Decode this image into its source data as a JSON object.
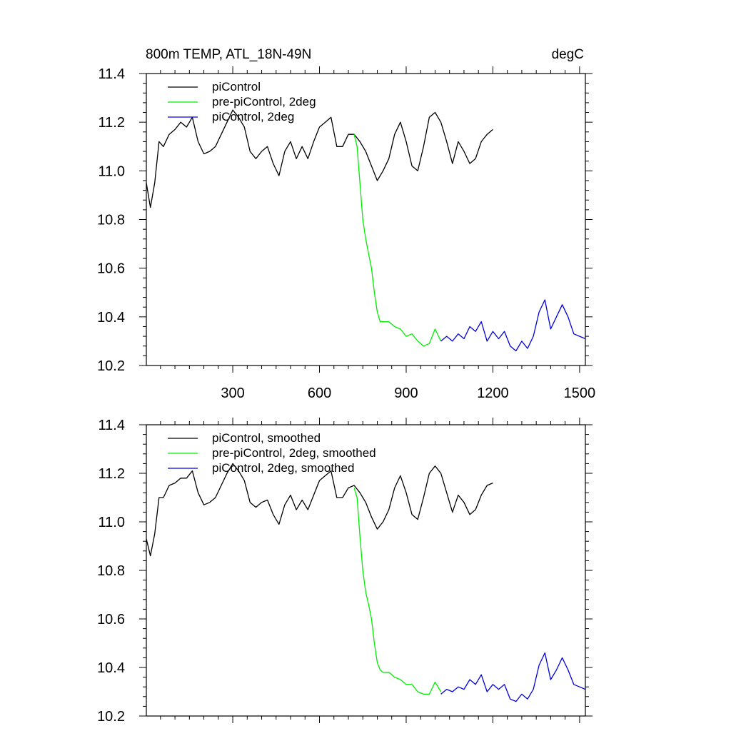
{
  "chart_data": [
    {
      "type": "line",
      "title": "800m TEMP, ATL_18N-49N",
      "units": "degC",
      "xlim": [
        1,
        1520
      ],
      "ylim": [
        10.2,
        11.4
      ],
      "x_ticks": [
        300,
        600,
        900,
        1200,
        1500
      ],
      "x_tick_labels": [
        "300",
        "600",
        "900",
        "1200",
        "1500"
      ],
      "y_ticks": [
        10.2,
        10.4,
        10.6,
        10.8,
        11.0,
        11.2,
        11.4
      ],
      "y_tick_labels": [
        "10.2",
        "10.4",
        "10.6",
        "10.8",
        "11.0",
        "11.2",
        "11.4"
      ],
      "legend_position": "top-left",
      "series": [
        {
          "name": "piControl",
          "color": "#000000",
          "x": [
            1,
            15,
            30,
            45,
            60,
            80,
            100,
            120,
            140,
            160,
            180,
            200,
            220,
            240,
            260,
            280,
            300,
            320,
            340,
            360,
            380,
            400,
            420,
            440,
            460,
            480,
            500,
            520,
            540,
            560,
            580,
            600,
            620,
            640,
            660,
            680,
            700,
            720,
            740,
            760,
            780,
            800,
            820,
            840,
            860,
            880,
            900,
            920,
            940,
            960,
            980,
            1000,
            1020,
            1040,
            1060,
            1080,
            1100,
            1120,
            1140,
            1160,
            1180,
            1200
          ],
          "y": [
            10.95,
            10.85,
            10.95,
            11.12,
            11.1,
            11.15,
            11.17,
            11.2,
            11.18,
            11.22,
            11.12,
            11.07,
            11.08,
            11.1,
            11.15,
            11.2,
            11.25,
            11.22,
            11.18,
            11.08,
            11.05,
            11.08,
            11.1,
            11.03,
            10.98,
            11.08,
            11.12,
            11.05,
            11.1,
            11.05,
            11.12,
            11.18,
            11.2,
            11.22,
            11.1,
            11.1,
            11.15,
            11.15,
            11.12,
            11.08,
            11.02,
            10.96,
            11.0,
            11.05,
            11.15,
            11.2,
            11.12,
            11.02,
            11.0,
            11.1,
            11.22,
            11.24,
            11.2,
            11.12,
            11.03,
            11.12,
            11.08,
            11.03,
            11.05,
            11.12,
            11.15,
            11.17
          ]
        },
        {
          "name": "pre-piControl, 2deg",
          "color": "#00ee00",
          "x": [
            720,
            730,
            740,
            750,
            760,
            770,
            780,
            790,
            800,
            810,
            820,
            840,
            860,
            880,
            900,
            920,
            940,
            960,
            980,
            1000,
            1020
          ],
          "y": [
            11.15,
            11.1,
            10.95,
            10.8,
            10.72,
            10.66,
            10.6,
            10.5,
            10.42,
            10.38,
            10.38,
            10.38,
            10.36,
            10.35,
            10.32,
            10.33,
            10.3,
            10.28,
            10.29,
            10.35,
            10.3
          ]
        },
        {
          "name": "piControl, 2deg",
          "color": "#0000dd",
          "x": [
            1020,
            1040,
            1060,
            1080,
            1100,
            1120,
            1140,
            1160,
            1180,
            1200,
            1220,
            1240,
            1260,
            1280,
            1300,
            1320,
            1340,
            1360,
            1380,
            1400,
            1420,
            1440,
            1460,
            1480,
            1500,
            1520
          ],
          "y": [
            10.3,
            10.32,
            10.3,
            10.33,
            10.31,
            10.36,
            10.34,
            10.38,
            10.3,
            10.34,
            10.31,
            10.34,
            10.28,
            10.26,
            10.3,
            10.27,
            10.32,
            10.42,
            10.47,
            10.35,
            10.4,
            10.45,
            10.4,
            10.33,
            10.32,
            10.31
          ]
        }
      ]
    },
    {
      "type": "line",
      "title": "",
      "xlim": [
        1,
        1520
      ],
      "ylim": [
        10.2,
        11.4
      ],
      "x_ticks": [
        300,
        600,
        900,
        1200,
        1500
      ],
      "y_ticks": [
        10.2,
        10.4,
        10.6,
        10.8,
        11.0,
        11.2,
        11.4
      ],
      "y_tick_labels": [
        "10.2",
        "10.4",
        "10.6",
        "10.8",
        "11.0",
        "11.2",
        "11.4"
      ],
      "legend_position": "top-left",
      "series": [
        {
          "name": "piControl, smoothed",
          "color": "#000000",
          "x": [
            1,
            15,
            30,
            45,
            60,
            80,
            100,
            120,
            140,
            160,
            180,
            200,
            220,
            240,
            260,
            280,
            300,
            320,
            340,
            360,
            380,
            400,
            420,
            440,
            460,
            480,
            500,
            520,
            540,
            560,
            580,
            600,
            620,
            640,
            660,
            680,
            700,
            720,
            740,
            760,
            780,
            800,
            820,
            840,
            860,
            880,
            900,
            920,
            940,
            960,
            980,
            1000,
            1020,
            1040,
            1060,
            1080,
            1100,
            1120,
            1140,
            1160,
            1180,
            1200
          ],
          "y": [
            10.93,
            10.86,
            10.95,
            11.1,
            11.1,
            11.15,
            11.16,
            11.18,
            11.18,
            11.21,
            11.12,
            11.07,
            11.08,
            11.1,
            11.15,
            11.2,
            11.24,
            11.21,
            11.17,
            11.08,
            11.06,
            11.08,
            11.09,
            11.03,
            10.99,
            11.07,
            11.11,
            11.05,
            11.09,
            11.05,
            11.11,
            11.17,
            11.19,
            11.21,
            11.1,
            11.1,
            11.14,
            11.15,
            11.12,
            11.08,
            11.02,
            10.97,
            11.0,
            11.05,
            11.14,
            11.19,
            11.12,
            11.03,
            11.01,
            11.1,
            11.2,
            11.23,
            11.2,
            11.12,
            11.04,
            11.11,
            11.08,
            11.03,
            11.05,
            11.11,
            11.15,
            11.16
          ]
        },
        {
          "name": "pre-piControl, 2deg, smoothed",
          "color": "#00ee00",
          "x": [
            720,
            730,
            740,
            750,
            760,
            770,
            780,
            790,
            800,
            810,
            820,
            840,
            860,
            880,
            900,
            920,
            940,
            960,
            980,
            1000,
            1020
          ],
          "y": [
            11.14,
            11.1,
            10.94,
            10.8,
            10.71,
            10.66,
            10.6,
            10.5,
            10.42,
            10.39,
            10.38,
            10.38,
            10.36,
            10.35,
            10.33,
            10.33,
            10.3,
            10.29,
            10.29,
            10.34,
            10.3
          ]
        },
        {
          "name": "piControl, 2deg, smoothed",
          "color": "#0000dd",
          "x": [
            1020,
            1040,
            1060,
            1080,
            1100,
            1120,
            1140,
            1160,
            1180,
            1200,
            1220,
            1240,
            1260,
            1280,
            1300,
            1320,
            1340,
            1360,
            1380,
            1400,
            1420,
            1440,
            1460,
            1480,
            1500,
            1520
          ],
          "y": [
            10.29,
            10.31,
            10.3,
            10.32,
            10.31,
            10.35,
            10.33,
            10.37,
            10.3,
            10.33,
            10.31,
            10.33,
            10.27,
            10.26,
            10.29,
            10.27,
            10.31,
            10.41,
            10.46,
            10.35,
            10.39,
            10.44,
            10.39,
            10.33,
            10.32,
            10.31
          ]
        }
      ]
    }
  ]
}
